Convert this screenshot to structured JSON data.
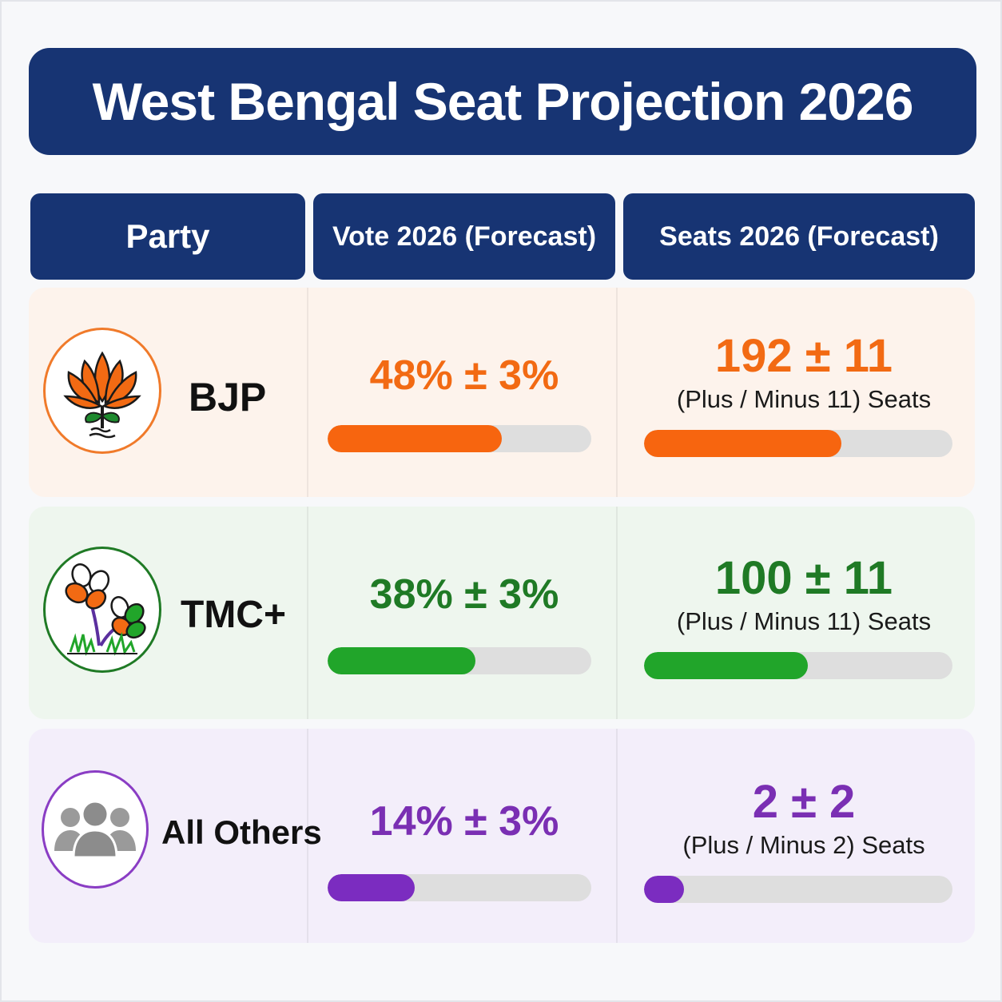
{
  "title": "West Bengal Seat Projection 2026",
  "headers": {
    "party": "Party",
    "vote": "Vote 2026 (Forecast)",
    "seats": "Seats 2026 (Forecast)"
  },
  "colors": {
    "header_bg": "#173473",
    "bjp": "#f26a13",
    "tmc": "#1f7a25",
    "tmc_bar": "#21a52a",
    "others": "#7a2fb3",
    "bar_track": "#dedede"
  },
  "chart_data": {
    "type": "table",
    "columns": [
      "Party",
      "Vote 2026 (Forecast)",
      "Seats 2026 (Forecast)"
    ],
    "rows": [
      {
        "party": "BJP",
        "icon": "lotus-icon",
        "vote_label": "48% ± 3%",
        "vote_pct": 48,
        "vote_margin": 3,
        "seats_label": "192 ± 11",
        "seats": 192,
        "seats_margin": 11,
        "seats_note": "(Plus / Minus 11) Seats",
        "vote_bar_fraction": 0.66,
        "seat_bar_fraction": 0.64,
        "color": "#f26a13",
        "bar_color": "#f7650f",
        "row_bg": "#fdf3ec"
      },
      {
        "party": "TMC+",
        "icon": "flowers-and-grass-icon",
        "vote_label": "38% ± 3%",
        "vote_pct": 38,
        "vote_margin": 3,
        "seats_label": "100 ± 11",
        "seats": 100,
        "seats_margin": 11,
        "seats_note": "(Plus / Minus 11) Seats",
        "vote_bar_fraction": 0.56,
        "seat_bar_fraction": 0.53,
        "color": "#1f7a25",
        "bar_color": "#21a52a",
        "row_bg": "#eef6ee"
      },
      {
        "party": "All Others",
        "icon": "people-group-icon",
        "vote_label": "14% ± 3%",
        "vote_pct": 14,
        "vote_margin": 3,
        "seats_label": "2 ± 2",
        "seats": 2,
        "seats_margin": 2,
        "seats_note": "(Plus / Minus 2) Seats",
        "vote_bar_fraction": 0.33,
        "seat_bar_fraction": 0.13,
        "color": "#7a2fb3",
        "bar_color": "#7b2cc0",
        "row_bg": "#f3eefa"
      }
    ]
  }
}
